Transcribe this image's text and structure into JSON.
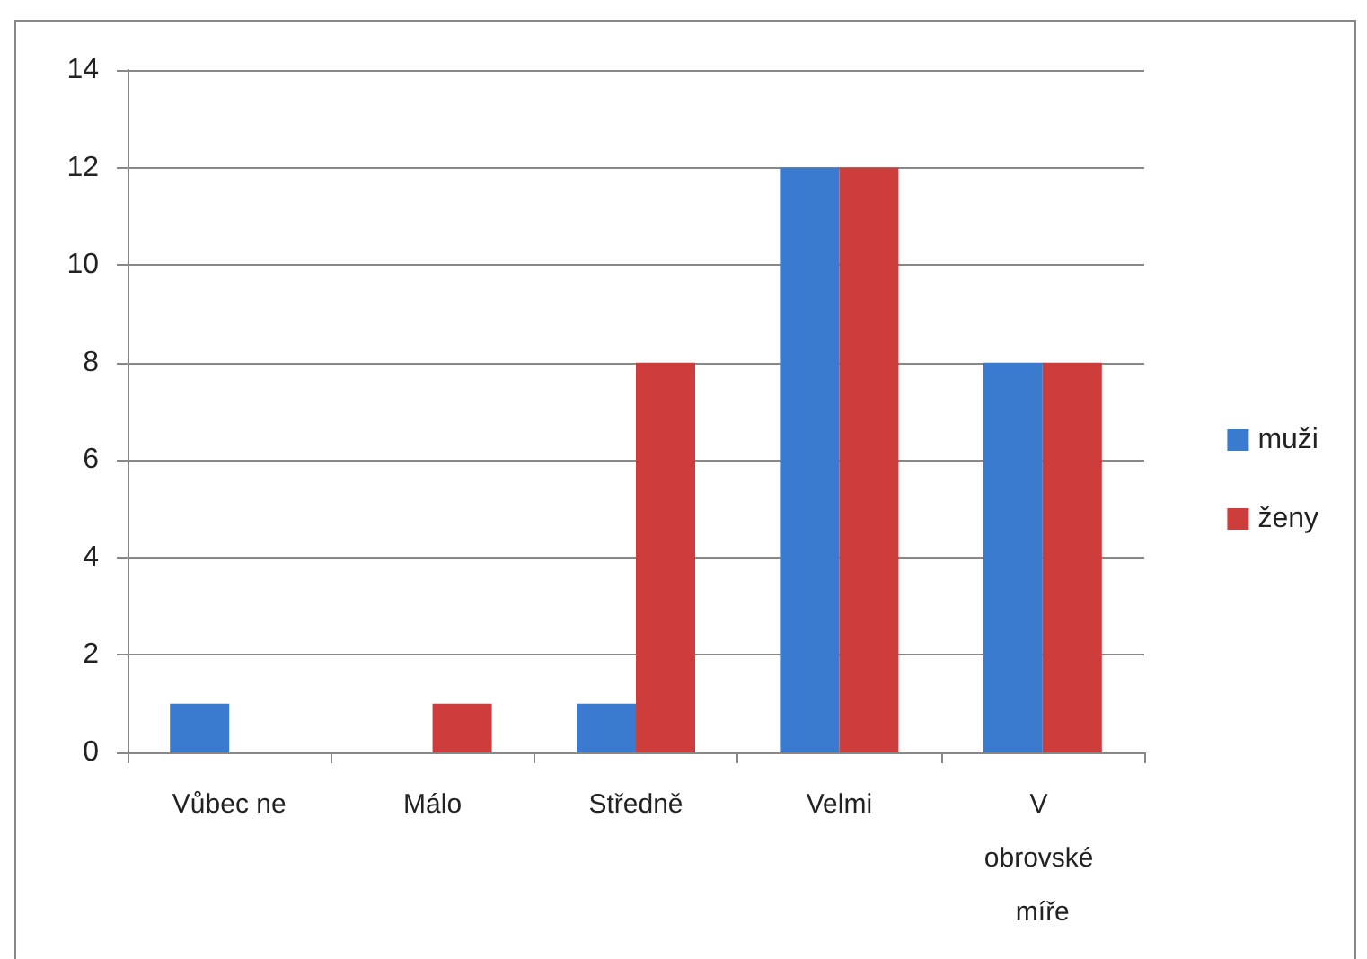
{
  "chart_data": {
    "type": "bar",
    "categories": [
      "Vůbec ne",
      "Málo",
      "Středně",
      "Velmi",
      "V obrovské míře"
    ],
    "series": [
      {
        "name": "muži",
        "color": "#3b7bcf",
        "values": [
          1,
          0,
          1,
          12,
          8
        ]
      },
      {
        "name": "ženy",
        "color": "#cc3d3b",
        "values": [
          0,
          1,
          8,
          12,
          8
        ]
      }
    ],
    "ylim": [
      0,
      14
    ],
    "yticks": [
      0,
      2,
      4,
      6,
      8,
      10,
      12,
      14
    ],
    "grid": "y",
    "legend": "right"
  }
}
